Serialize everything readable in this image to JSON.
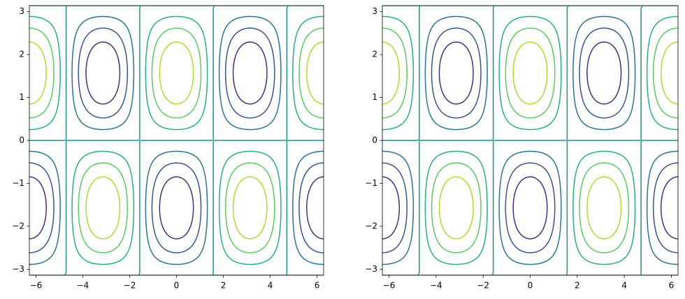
{
  "chart_data": [
    {
      "type": "contour",
      "xlim": [
        -6.2832,
        6.2832
      ],
      "ylim": [
        -3.1416,
        3.1416
      ],
      "xticks": [
        {
          "value": -6,
          "label": "−6"
        },
        {
          "value": -4,
          "label": "−4"
        },
        {
          "value": -2,
          "label": "−2"
        },
        0,
        2,
        4,
        6
      ],
      "yticks": [
        {
          "value": -3,
          "label": "−3"
        },
        {
          "value": -2,
          "label": "−2"
        },
        {
          "value": -1,
          "label": "−1"
        },
        0,
        1,
        2,
        3
      ],
      "levels": [
        -0.75,
        -0.5,
        -0.25,
        0,
        0.25,
        0.5,
        0.75
      ],
      "colors": [
        "#472d7b",
        "#3b528b",
        "#2c728e",
        "#21918c",
        "#28ae80",
        "#5ec962",
        "#addc30"
      ]
    },
    {
      "type": "contour",
      "xlim": [
        -6.2832,
        6.2832
      ],
      "ylim": [
        -3.1416,
        3.1416
      ],
      "xticks": [
        {
          "value": -6,
          "label": "−6"
        },
        {
          "value": -4,
          "label": "−4"
        },
        {
          "value": -2,
          "label": "−2"
        },
        0,
        2,
        4,
        6
      ],
      "yticks": [
        {
          "value": -3,
          "label": "−3"
        },
        {
          "value": -2,
          "label": "−2"
        },
        {
          "value": -1,
          "label": "−1"
        },
        0,
        1,
        2,
        3
      ],
      "levels": [
        -0.75,
        -0.5,
        -0.25,
        0,
        0.25,
        0.5,
        0.75
      ],
      "colors": [
        "#472d7b",
        "#3b528b",
        "#2c728e",
        "#21918c",
        "#28ae80",
        "#5ec962",
        "#addc30"
      ]
    }
  ]
}
